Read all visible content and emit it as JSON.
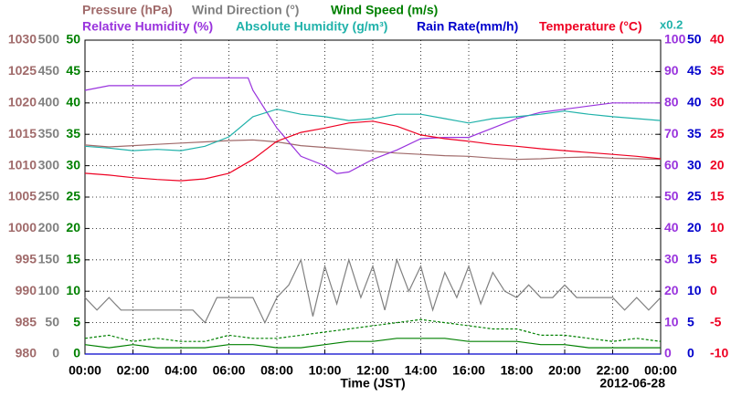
{
  "chart_data": {
    "type": "line",
    "xlabel": "Time (JST)",
    "date": "2012-06-28",
    "annotation": "x0.2",
    "grid": true,
    "xlim": [
      0,
      24
    ],
    "xticks": [
      {
        "value": 0,
        "label": "00:00"
      },
      {
        "value": 2,
        "label": "02:00"
      },
      {
        "value": 4,
        "label": "04:00"
      },
      {
        "value": 6,
        "label": "06:00"
      },
      {
        "value": 8,
        "label": "08:00"
      },
      {
        "value": 10,
        "label": "10:00"
      },
      {
        "value": 12,
        "label": "12:00"
      },
      {
        "value": 14,
        "label": "14:00"
      },
      {
        "value": 16,
        "label": "16:00"
      },
      {
        "value": 18,
        "label": "18:00"
      },
      {
        "value": 20,
        "label": "20:00"
      },
      {
        "value": 22,
        "label": "22:00"
      },
      {
        "value": 24,
        "label": "00:00"
      }
    ],
    "axes": [
      {
        "color": "#a06a6a",
        "lim": [
          980,
          1030
        ],
        "ticks": [
          980,
          985,
          990,
          995,
          1000,
          1005,
          1010,
          1015,
          1020,
          1025,
          1030
        ]
      },
      {
        "color": "#808080",
        "lim": [
          0,
          500
        ],
        "ticks": [
          0,
          50,
          100,
          150,
          200,
          250,
          300,
          350,
          400,
          450,
          500
        ]
      },
      {
        "color": "#008000",
        "lim": [
          0,
          50
        ],
        "ticks": [
          0,
          5,
          10,
          15,
          20,
          25,
          30,
          35,
          40,
          45,
          50
        ]
      },
      {
        "color": "#9933dd",
        "lim": [
          0,
          100
        ],
        "ticks": [
          0,
          10,
          20,
          30,
          40,
          50,
          60,
          70,
          80,
          90,
          100
        ]
      },
      {
        "color": "#0000cc",
        "lim": [
          0,
          50
        ],
        "ticks": [
          0,
          5,
          10,
          15,
          20,
          25,
          30,
          35,
          40,
          45,
          50
        ]
      },
      {
        "color": "#ee0022",
        "lim": [
          -10,
          40
        ],
        "ticks": [
          -10,
          -5,
          0,
          5,
          10,
          15,
          20,
          25,
          30,
          35,
          40
        ]
      }
    ],
    "series": [
      {
        "name": "Pressure (hPa)",
        "color": "#a06a6a",
        "axis": 0,
        "x": [
          0,
          1,
          2,
          3,
          4,
          5,
          6,
          7,
          8,
          9,
          10,
          11,
          12,
          13,
          14,
          15,
          16,
          17,
          18,
          19,
          20,
          21,
          22,
          23,
          24
        ],
        "values": [
          1013.3,
          1013.0,
          1013.2,
          1013.4,
          1013.6,
          1013.8,
          1014.0,
          1014.1,
          1013.8,
          1013.2,
          1012.9,
          1012.6,
          1012.3,
          1012.0,
          1011.8,
          1011.6,
          1011.5,
          1011.2,
          1011.0,
          1011.1,
          1011.3,
          1011.4,
          1011.2,
          1011.1,
          1011.0
        ]
      },
      {
        "name": "Wind Direction (°)",
        "color": "#808080",
        "axis": 1,
        "x": [
          0,
          0.5,
          1,
          1.5,
          2,
          2.5,
          3,
          3.5,
          4,
          4.5,
          5,
          5.5,
          6,
          6.5,
          7,
          7.5,
          8,
          8.5,
          9,
          9.5,
          10,
          10.5,
          11,
          11.5,
          12,
          12.5,
          13,
          13.5,
          14,
          14.5,
          15,
          15.5,
          16,
          16.5,
          17,
          17.5,
          18,
          18.5,
          19,
          19.5,
          20,
          20.5,
          21,
          21.5,
          22,
          22.5,
          23,
          23.5,
          24
        ],
        "values": [
          90,
          70,
          90,
          70,
          70,
          70,
          70,
          70,
          70,
          70,
          50,
          90,
          90,
          90,
          90,
          50,
          90,
          110,
          150,
          60,
          140,
          80,
          150,
          90,
          140,
          70,
          150,
          100,
          140,
          70,
          130,
          90,
          140,
          80,
          130,
          100,
          90,
          110,
          90,
          90,
          110,
          90,
          90,
          90,
          90,
          70,
          90,
          70,
          90
        ]
      },
      {
        "name": "Wind Speed (m/s)",
        "color": "#008000",
        "axis": 2,
        "x": [
          0,
          1,
          2,
          3,
          4,
          5,
          6,
          7,
          8,
          9,
          10,
          11,
          12,
          13,
          14,
          15,
          16,
          17,
          18,
          19,
          20,
          21,
          22,
          23,
          24
        ],
        "values": [
          1.5,
          1,
          1.5,
          1,
          1,
          1,
          1.5,
          1.5,
          1,
          1,
          1.5,
          2,
          2,
          2.5,
          2.5,
          2.5,
          2,
          2,
          2,
          1.5,
          1.5,
          1,
          1,
          1,
          1
        ]
      },
      {
        "color": "#008000",
        "axis": 2,
        "dash": true,
        "x": [
          0,
          1,
          2,
          3,
          4,
          5,
          6,
          7,
          8,
          9,
          10,
          11,
          12,
          13,
          14,
          15,
          16,
          17,
          18,
          19,
          20,
          21,
          22,
          23,
          24
        ],
        "values": [
          2.5,
          3,
          2,
          2.5,
          2,
          2,
          3,
          2.5,
          2.5,
          3,
          3.5,
          4,
          4.5,
          5,
          5.5,
          5,
          4.5,
          4,
          4,
          3,
          3,
          2.5,
          2,
          2.5,
          2
        ]
      },
      {
        "name": "Relative Humidity (%)",
        "color": "#9933dd",
        "axis": 3,
        "x": [
          0,
          1,
          2,
          3,
          4,
          4.5,
          5,
          6,
          6.8,
          7,
          8,
          9,
          10,
          10.5,
          11,
          12,
          13,
          14,
          15,
          16,
          17,
          18,
          19,
          20,
          21,
          22,
          23,
          24
        ],
        "values": [
          84,
          85.5,
          85.5,
          85.5,
          85.5,
          88,
          88,
          88,
          88,
          84,
          72,
          63,
          60,
          57.5,
          58,
          62,
          65,
          68.6,
          69,
          69,
          72,
          75,
          77,
          78,
          79,
          80,
          80,
          80
        ]
      },
      {
        "name": "Absolute Humidity (g/m³)",
        "color": "#20b2aa",
        "axis": 4,
        "x": [
          0,
          1,
          2,
          3,
          4,
          5,
          6,
          7,
          8,
          9,
          10,
          11,
          12,
          13,
          14,
          15,
          16,
          17,
          18,
          19,
          20,
          21,
          22,
          23,
          24
        ],
        "values": [
          33.1,
          32.8,
          32.4,
          32.6,
          32.4,
          33.1,
          34.6,
          37.8,
          39,
          38.2,
          37.8,
          37.2,
          37.5,
          38.2,
          38.2,
          37.5,
          36.8,
          37.5,
          37.8,
          38.2,
          38.7,
          38.2,
          37.8,
          37.5,
          37.2
        ]
      },
      {
        "name": "Rain Rate(mm/h)",
        "color": "#0000cc",
        "axis": 4,
        "x": [
          0,
          24
        ],
        "values": [
          0,
          0
        ]
      },
      {
        "name": "Temperature (°C)",
        "color": "#ee0022",
        "axis": 5,
        "x": [
          0,
          1,
          2,
          3,
          4,
          5,
          6,
          7,
          8,
          9,
          10,
          11,
          12,
          13,
          14,
          15,
          16,
          17,
          18,
          19,
          20,
          21,
          22,
          23,
          24
        ],
        "values": [
          18.8,
          18.5,
          18.1,
          17.8,
          17.6,
          17.9,
          18.8,
          21,
          23.9,
          25.3,
          26,
          26.8,
          27.1,
          26.3,
          24.9,
          24.3,
          23.9,
          23.4,
          23.1,
          22.7,
          22.4,
          22.1,
          21.8,
          21.5,
          21.1
        ]
      }
    ]
  }
}
